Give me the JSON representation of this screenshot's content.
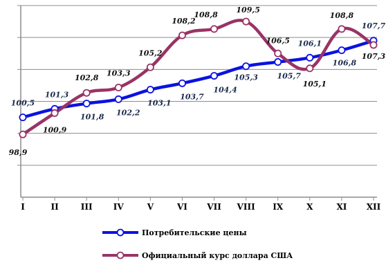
{
  "chart_data": {
    "type": "line",
    "categories": [
      "I",
      "II",
      "III",
      "IV",
      "V",
      "VI",
      "VII",
      "VIII",
      "IX",
      "X",
      "XI",
      "XII"
    ],
    "ylim": [
      93,
      111
    ],
    "grid": true,
    "legend_position": "bottom",
    "series": [
      {
        "name": "Потребительские цены",
        "color": "#0a12e0",
        "marker_fill": "#ffffff",
        "values": [
          100.5,
          101.3,
          101.8,
          102.2,
          103.1,
          103.7,
          104.4,
          105.3,
          105.7,
          106.1,
          106.8,
          107.7
        ],
        "labels": [
          "100,5",
          "101,3",
          "101,8",
          "102,2",
          "103,1",
          "103,7",
          "104,4",
          "105,3",
          "105,7",
          "106,1",
          "106,8",
          "107,7"
        ]
      },
      {
        "name": "Официальный курс доллара США",
        "color": "#993366",
        "marker_fill": "#ffffff",
        "values": [
          98.9,
          100.9,
          102.8,
          103.3,
          105.2,
          108.2,
          108.8,
          109.5,
          106.5,
          105.1,
          108.8,
          107.3
        ],
        "labels": [
          "98,9",
          "100,9",
          "102,8",
          "103,3",
          "105,2",
          "108,2",
          "108,8",
          "109,5",
          "106,5",
          "105,1",
          "108,8",
          "107,3"
        ]
      }
    ]
  }
}
